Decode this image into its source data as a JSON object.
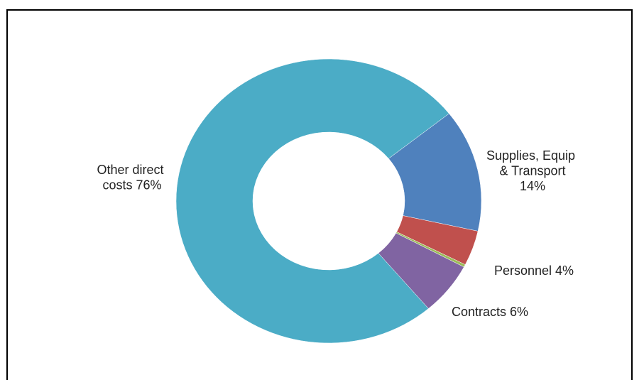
{
  "chart_data": {
    "type": "donut",
    "categories": [
      "Supplies, Equip & Transport",
      "Personnel",
      null,
      "Contracts",
      "Other direct costs"
    ],
    "values": [
      14,
      4,
      0.3,
      6,
      76
    ],
    "value_labels": [
      "14%",
      "4%",
      null,
      "6%",
      "76%"
    ],
    "colors": [
      "#4f81bd",
      "#c0504d",
      "#9bbb59",
      "#8064a2",
      "#4bacc6"
    ],
    "start_angle": 52
  }
}
